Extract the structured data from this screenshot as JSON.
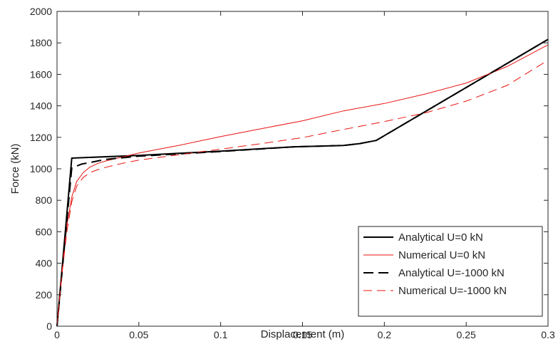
{
  "chart_data": {
    "type": "line",
    "title": "",
    "xlabel": "Displacement (m)",
    "ylabel": "Force (kN)",
    "xlim": [
      0,
      0.3
    ],
    "ylim": [
      0,
      2000
    ],
    "xticks": [
      0,
      0.05,
      0.1,
      0.15,
      0.2,
      0.25,
      0.3
    ],
    "xtick_labels": [
      "0",
      "0.05",
      "0.1",
      "0.15",
      "0.2",
      "0.25",
      "0.3"
    ],
    "yticks": [
      0,
      200,
      400,
      600,
      800,
      1000,
      1200,
      1400,
      1600,
      1800,
      2000
    ],
    "ytick_labels": [
      "0",
      "200",
      "400",
      "600",
      "800",
      "1000",
      "1200",
      "1400",
      "1600",
      "1800",
      "2000"
    ],
    "grid": false,
    "legend_position": "bottom-right",
    "series": [
      {
        "name": "Analytical U=0 kN",
        "color": "#000000",
        "dash": "solid",
        "x": [
          0,
          0.009,
          0.05,
          0.1,
          0.145,
          0.175,
          0.185,
          0.195,
          0.3
        ],
        "y": [
          0,
          1068,
          1085,
          1112,
          1140,
          1148,
          1160,
          1180,
          1822
        ]
      },
      {
        "name": "Numerical U=0 kN",
        "color": "#e8130f",
        "dash": "solid",
        "x": [
          0,
          0.003,
          0.006,
          0.009,
          0.012,
          0.016,
          0.02,
          0.025,
          0.03,
          0.04,
          0.05,
          0.075,
          0.1,
          0.125,
          0.15,
          0.175,
          0.2,
          0.225,
          0.25,
          0.275,
          0.3
        ],
        "y": [
          0,
          350,
          640,
          820,
          920,
          975,
          1010,
          1035,
          1050,
          1075,
          1100,
          1150,
          1205,
          1255,
          1305,
          1368,
          1415,
          1475,
          1545,
          1650,
          1788
        ]
      },
      {
        "name": "Analytical U=-1000 kN",
        "color": "#000000",
        "dash": "dashed",
        "x": [
          0,
          0.009,
          0.015,
          0.03,
          0.05,
          0.1,
          0.145,
          0.175,
          0.185,
          0.195,
          0.3
        ],
        "y": [
          0,
          1005,
          1030,
          1060,
          1080,
          1110,
          1140,
          1148,
          1160,
          1180,
          1822
        ]
      },
      {
        "name": "Numerical U=-1000 kN",
        "color": "#e8130f",
        "dash": "dashed",
        "x": [
          0,
          0.003,
          0.006,
          0.009,
          0.012,
          0.016,
          0.02,
          0.025,
          0.03,
          0.04,
          0.05,
          0.075,
          0.1,
          0.125,
          0.15,
          0.175,
          0.2,
          0.225,
          0.25,
          0.275,
          0.3
        ],
        "y": [
          0,
          330,
          600,
          790,
          890,
          945,
          975,
          995,
          1010,
          1035,
          1055,
          1090,
          1125,
          1160,
          1198,
          1250,
          1300,
          1355,
          1430,
          1530,
          1690
        ]
      }
    ]
  }
}
